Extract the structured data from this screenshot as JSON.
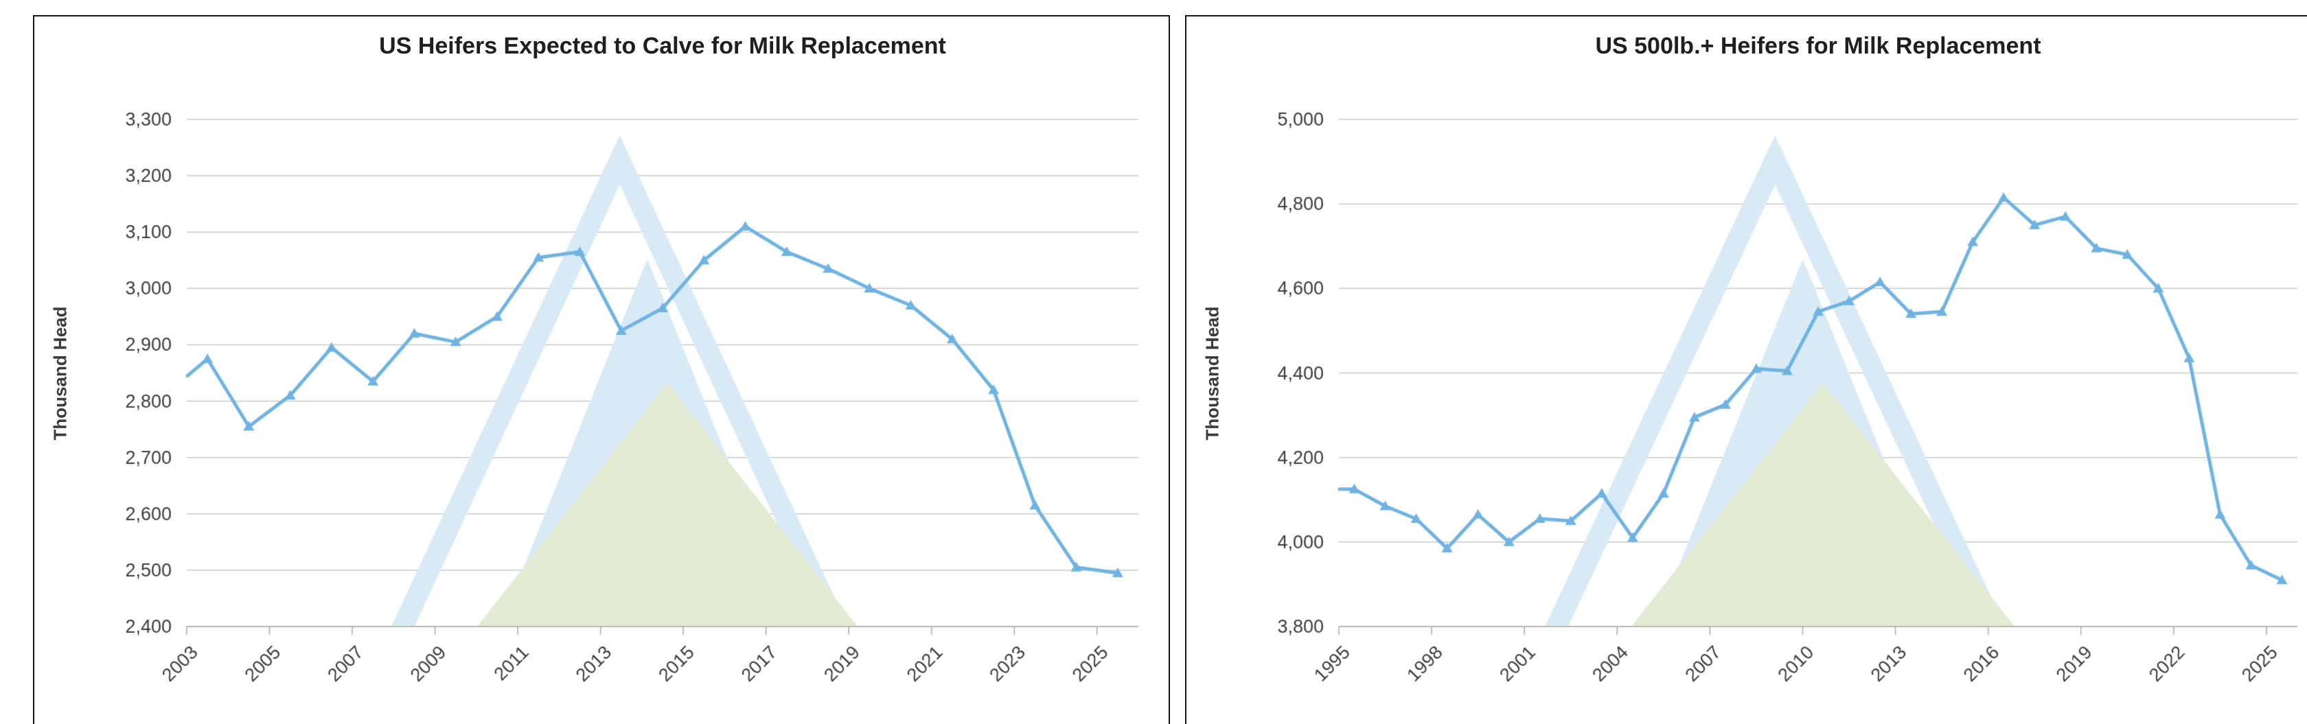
{
  "style": {
    "background": "#ffffff",
    "panel_border_color": "#141414",
    "grid_color": "#c9c9c9",
    "axis_color": "#a8a8a8",
    "tick_text_color": "#3b3b3b",
    "title_text_color": "#1f1f1f"
  },
  "watermark": {
    "name": "mountain-logo-watermark",
    "blue": "#d9eaf7",
    "green": "#e3ebd3"
  },
  "chart_data": [
    {
      "type": "line",
      "title": "US Heifers Expected to Calve for Milk Replacement",
      "ylabel": "Thousand Head",
      "xlabel": "",
      "legend": null,
      "grid": true,
      "line_color": "#6fb3e2",
      "marker": "triangle-up",
      "ylim": [
        2400,
        3300
      ],
      "ytick_step": 100,
      "ytick_labels": [
        "2,400",
        "2,500",
        "2,600",
        "2,700",
        "2,800",
        "2,900",
        "3,000",
        "3,100",
        "3,200",
        "3,300"
      ],
      "xtick_labels": [
        "2003",
        "2005",
        "2007",
        "2009",
        "2011",
        "2013",
        "2015",
        "2017",
        "2019",
        "2021",
        "2023",
        "2025"
      ],
      "years": [
        "2003",
        "2004",
        "2005",
        "2006",
        "2007",
        "2008",
        "2009",
        "2010",
        "2011",
        "2012",
        "2013",
        "2014",
        "2015",
        "2016",
        "2017",
        "2018",
        "2019",
        "2020",
        "2021",
        "2022",
        "2023",
        "2024",
        "2025"
      ],
      "values": [
        2875,
        2755,
        2810,
        2895,
        2835,
        2920,
        2905,
        2950,
        3055,
        3065,
        2925,
        2965,
        3050,
        3110,
        3065,
        3035,
        3000,
        2970,
        2910,
        2820,
        2615,
        2505,
        2495
      ],
      "edge_lead_in_value": 2845
    },
    {
      "type": "line",
      "title": "US 500lb.+ Heifers for Milk Replacement",
      "ylabel": "Thousand Head",
      "xlabel": "",
      "legend": null,
      "grid": true,
      "line_color": "#6fb3e2",
      "marker": "triangle-up",
      "ylim": [
        3800,
        5000
      ],
      "ytick_step": 200,
      "ytick_labels": [
        "3,800",
        "4,000",
        "4,200",
        "4,400",
        "4,600",
        "4,800",
        "5,000"
      ],
      "xtick_labels": [
        "1995",
        "1998",
        "2001",
        "2004",
        "2007",
        "2010",
        "2013",
        "2016",
        "2019",
        "2022",
        "2025"
      ],
      "years": [
        "1995",
        "1996",
        "1997",
        "1998",
        "1999",
        "2000",
        "2001",
        "2002",
        "2003",
        "2004",
        "2005",
        "2006",
        "2007",
        "2008",
        "2009",
        "2010",
        "2011",
        "2012",
        "2013",
        "2014",
        "2015",
        "2016",
        "2017",
        "2018",
        "2019",
        "2020",
        "2021",
        "2022",
        "2023",
        "2024",
        "2025"
      ],
      "values": [
        4125,
        4085,
        4055,
        3985,
        4065,
        4000,
        4055,
        4050,
        4115,
        4010,
        4115,
        4295,
        4325,
        4410,
        4405,
        4545,
        4570,
        4615,
        4540,
        4545,
        4710,
        4815,
        4750,
        4770,
        4695,
        4680,
        4600,
        4435,
        4065,
        3945,
        3910
      ],
      "edge_lead_in_value": 4125
    }
  ]
}
